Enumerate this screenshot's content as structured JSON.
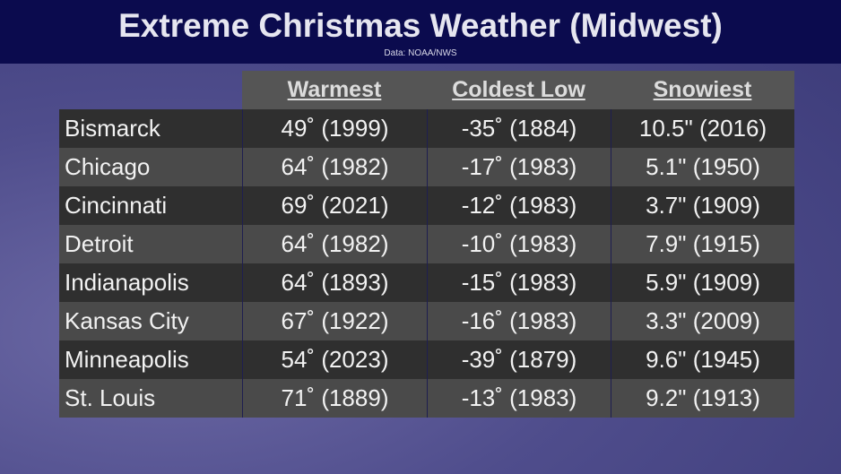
{
  "header": {
    "title": "Extreme Christmas Weather (Midwest)",
    "subtitle": "Data: NOAA/NWS"
  },
  "table": {
    "columns": [
      "Warmest",
      "Coldest Low",
      "Snowiest"
    ],
    "rows": [
      [
        "Bismarck",
        "49˚ (1999)",
        "-35˚ (1884)",
        "10.5\" (2016)"
      ],
      [
        "Chicago",
        "64˚ (1982)",
        "-17˚ (1983)",
        "5.1\" (1950)"
      ],
      [
        "Cincinnati",
        "69˚ (2021)",
        "-12˚ (1983)",
        "3.7\" (1909)"
      ],
      [
        "Detroit",
        "64˚ (1982)",
        "-10˚ (1983)",
        "7.9\" (1915)"
      ],
      [
        "Indianapolis",
        "64˚ (1893)",
        "-15˚ (1983)",
        "5.9\" (1909)"
      ],
      [
        "Kansas City",
        "67˚ (1922)",
        "-16˚ (1983)",
        "3.3\" (2009)"
      ],
      [
        "Minneapolis",
        "54˚ (2023)",
        "-39˚ (1879)",
        "9.6\" (1945)"
      ],
      [
        "St. Louis",
        "71˚ (1889)",
        "-13˚ (1983)",
        "9.2\" (1913)"
      ]
    ]
  }
}
